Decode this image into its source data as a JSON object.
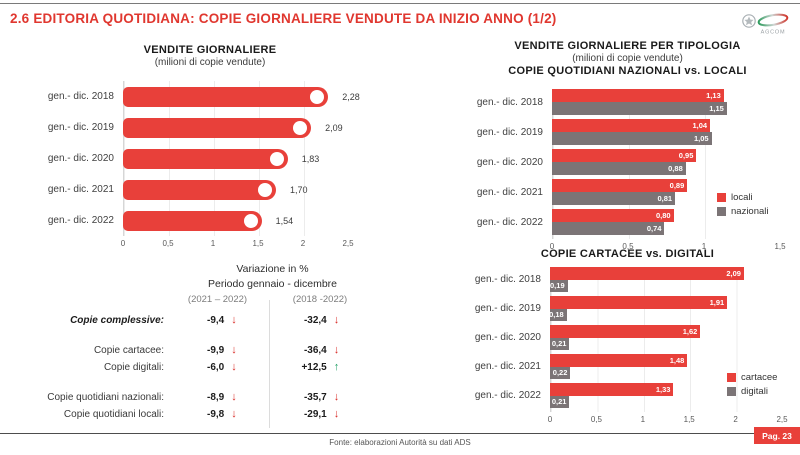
{
  "header": {
    "title": "2.6 EDITORIA QUOTIDIANA: COPIE GIORNALIERE VENDUTE DA INIZIO ANNO (1/2)",
    "logo": "AGCOM"
  },
  "colors": {
    "red": "#E8403A",
    "gray": "#7B7476",
    "green": "#1E9E62",
    "title_red": "#E0372F"
  },
  "chart_data": [
    {
      "id": "vendite-giornaliere",
      "type": "bar",
      "orientation": "horizontal",
      "style": "lollipop",
      "title": "VENDITE GIORNALIERE",
      "subtitle": "(milioni di copie vendute)",
      "categories": [
        "gen.- dic. 2018",
        "gen.- dic. 2019",
        "gen.- dic. 2020",
        "gen.- dic. 2021",
        "gen.- dic. 2022"
      ],
      "values": [
        2.28,
        2.09,
        1.83,
        1.7,
        1.54
      ],
      "value_labels": [
        "2,28",
        "2,09",
        "1,83",
        "1,70",
        "1,54"
      ],
      "xlim": [
        0,
        2.5
      ],
      "ticks": [
        "0",
        "0,5",
        "1",
        "1,5",
        "2",
        "2,5"
      ],
      "grid": true,
      "bar_color": "red"
    },
    {
      "id": "nazionali-vs-locali",
      "type": "bar",
      "orientation": "horizontal",
      "style": "grouped",
      "title": "VENDITE GIORNALIERE PER TIPOLOGIA",
      "subtitle": "(milioni di copie vendute)",
      "title2": "COPIE QUOTIDIANI NAZIONALI vs. LOCALI",
      "categories": [
        "gen.- dic. 2018",
        "gen.- dic. 2019",
        "gen.- dic. 2020",
        "gen.- dic. 2021",
        "gen.- dic. 2022"
      ],
      "series": [
        {
          "name": "locali",
          "color": "red",
          "values": [
            1.13,
            1.04,
            0.95,
            0.89,
            0.8
          ],
          "value_labels": [
            "1,13",
            "1,04",
            "0,95",
            "0,89",
            "0,80"
          ]
        },
        {
          "name": "nazionali",
          "color": "gray",
          "values": [
            1.15,
            1.05,
            0.88,
            0.81,
            0.74
          ],
          "value_labels": [
            "1,15",
            "1,05",
            "0,88",
            "0,81",
            "0,74"
          ]
        }
      ],
      "xlim": [
        0,
        1.5
      ],
      "ticks": [
        "0",
        "0,5",
        "1",
        "1,5"
      ],
      "grid": true,
      "legend_position": "right"
    },
    {
      "id": "cartacee-vs-digitali",
      "type": "bar",
      "orientation": "horizontal",
      "style": "grouped",
      "title": "COPIE CARTACEE vs. DIGITALI",
      "categories": [
        "gen.- dic. 2018",
        "gen.- dic. 2019",
        "gen.- dic. 2020",
        "gen.- dic. 2021",
        "gen.- dic. 2022"
      ],
      "series": [
        {
          "name": "cartacee",
          "color": "red",
          "values": [
            2.09,
            1.91,
            1.62,
            1.48,
            1.33
          ],
          "value_labels": [
            "2,09",
            "1,91",
            "1,62",
            "1,48",
            "1,33"
          ]
        },
        {
          "name": "digitali",
          "color": "gray",
          "values": [
            0.19,
            0.18,
            0.21,
            0.22,
            0.21
          ],
          "value_labels": [
            "0,19",
            "0,18",
            "0,21",
            "0,22",
            "0,21"
          ]
        }
      ],
      "xlim": [
        0,
        2.5
      ],
      "ticks": [
        "0",
        "0,5",
        "1",
        "1,5",
        "2",
        "2,5"
      ],
      "grid": true,
      "legend_position": "right"
    }
  ],
  "table": {
    "title": "Variazione in %",
    "subtitle": "Periodo gennaio - dicembre",
    "columns": [
      "(2021 – 2022)",
      "(2018 -2022)"
    ],
    "rows": [
      {
        "label": "Copie complessive:",
        "bold": true,
        "v1": "-9,4",
        "d1": "down",
        "v2": "-32,4",
        "d2": "down",
        "gap_after": true
      },
      {
        "label": "Copie cartacee:",
        "v1": "-9,9",
        "d1": "down",
        "v2": "-36,4",
        "d2": "down"
      },
      {
        "label": "Copie digitali:",
        "v1": "-6,0",
        "d1": "down",
        "v2": "+12,5",
        "d2": "up",
        "gap_after": true
      },
      {
        "label": "Copie quotidiani nazionali:",
        "v1": "-8,9",
        "d1": "down",
        "v2": "-35,7",
        "d2": "down"
      },
      {
        "label": "Copie quotidiani locali:",
        "v1": "-9,8",
        "d1": "down",
        "v2": "-29,1",
        "d2": "down"
      }
    ]
  },
  "footer": {
    "source": "Fonte: elaborazioni Autorità su dati ADS",
    "page": "Pag. 23"
  }
}
